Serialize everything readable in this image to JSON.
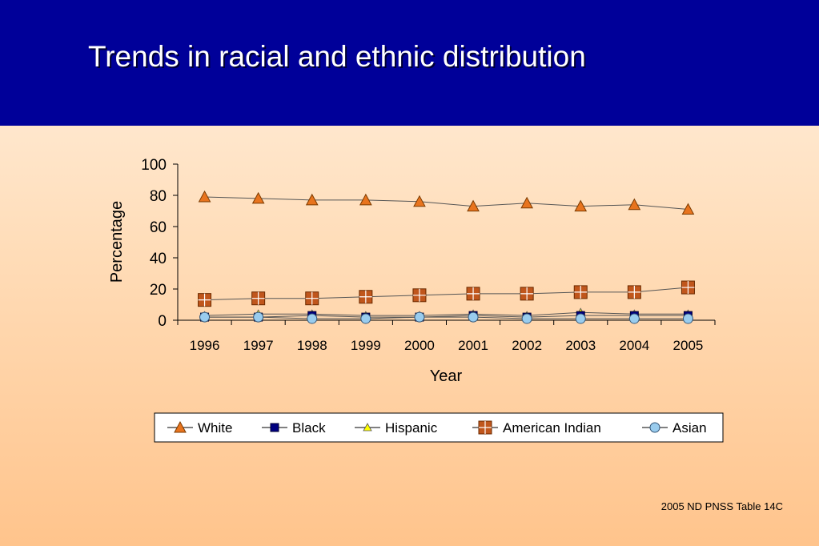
{
  "page": {
    "title": "Trends in racial and ethnic distribution",
    "source_note": "2005 ND PNSS Table 14C",
    "colors": {
      "header_bg": "#000099",
      "background_top": "#fff1e1",
      "background_bottom": "#ffc48c"
    }
  },
  "chart_data": {
    "type": "line",
    "title": "",
    "xlabel": "Year",
    "ylabel": "Percentage",
    "categories": [
      "1996",
      "1997",
      "1998",
      "1999",
      "2000",
      "2001",
      "2002",
      "2003",
      "2004",
      "2005"
    ],
    "ylim": [
      0,
      100
    ],
    "yticks": [
      0,
      20,
      40,
      60,
      80,
      100
    ],
    "grid": false,
    "legend_position": "bottom",
    "series": [
      {
        "name": "White",
        "marker": "triangle",
        "color": "#e8741e",
        "line_color": "#555555",
        "values": [
          79,
          78,
          77,
          77,
          76,
          73,
          75,
          73,
          74,
          71
        ]
      },
      {
        "name": "Black",
        "marker": "square",
        "color": "#000080",
        "line_color": "#555555",
        "values": [
          2,
          2,
          3,
          2,
          2,
          3,
          2,
          3,
          3,
          3
        ]
      },
      {
        "name": "Hispanic",
        "marker": "small-triangle",
        "color": "#ffff00",
        "line_color": "#555555",
        "values": [
          3,
          4,
          4,
          3,
          3,
          4,
          3,
          5,
          4,
          4
        ]
      },
      {
        "name": "American Indian",
        "marker": "square-plus",
        "color": "#c0561c",
        "line_color": "#555555",
        "values": [
          13,
          14,
          14,
          15,
          16,
          17,
          17,
          18,
          18,
          21
        ]
      },
      {
        "name": "Asian",
        "marker": "circle",
        "color": "#99ccee",
        "line_color": "#555555",
        "values": [
          2,
          2,
          1,
          1,
          2,
          2,
          1,
          1,
          1,
          1
        ]
      }
    ]
  }
}
